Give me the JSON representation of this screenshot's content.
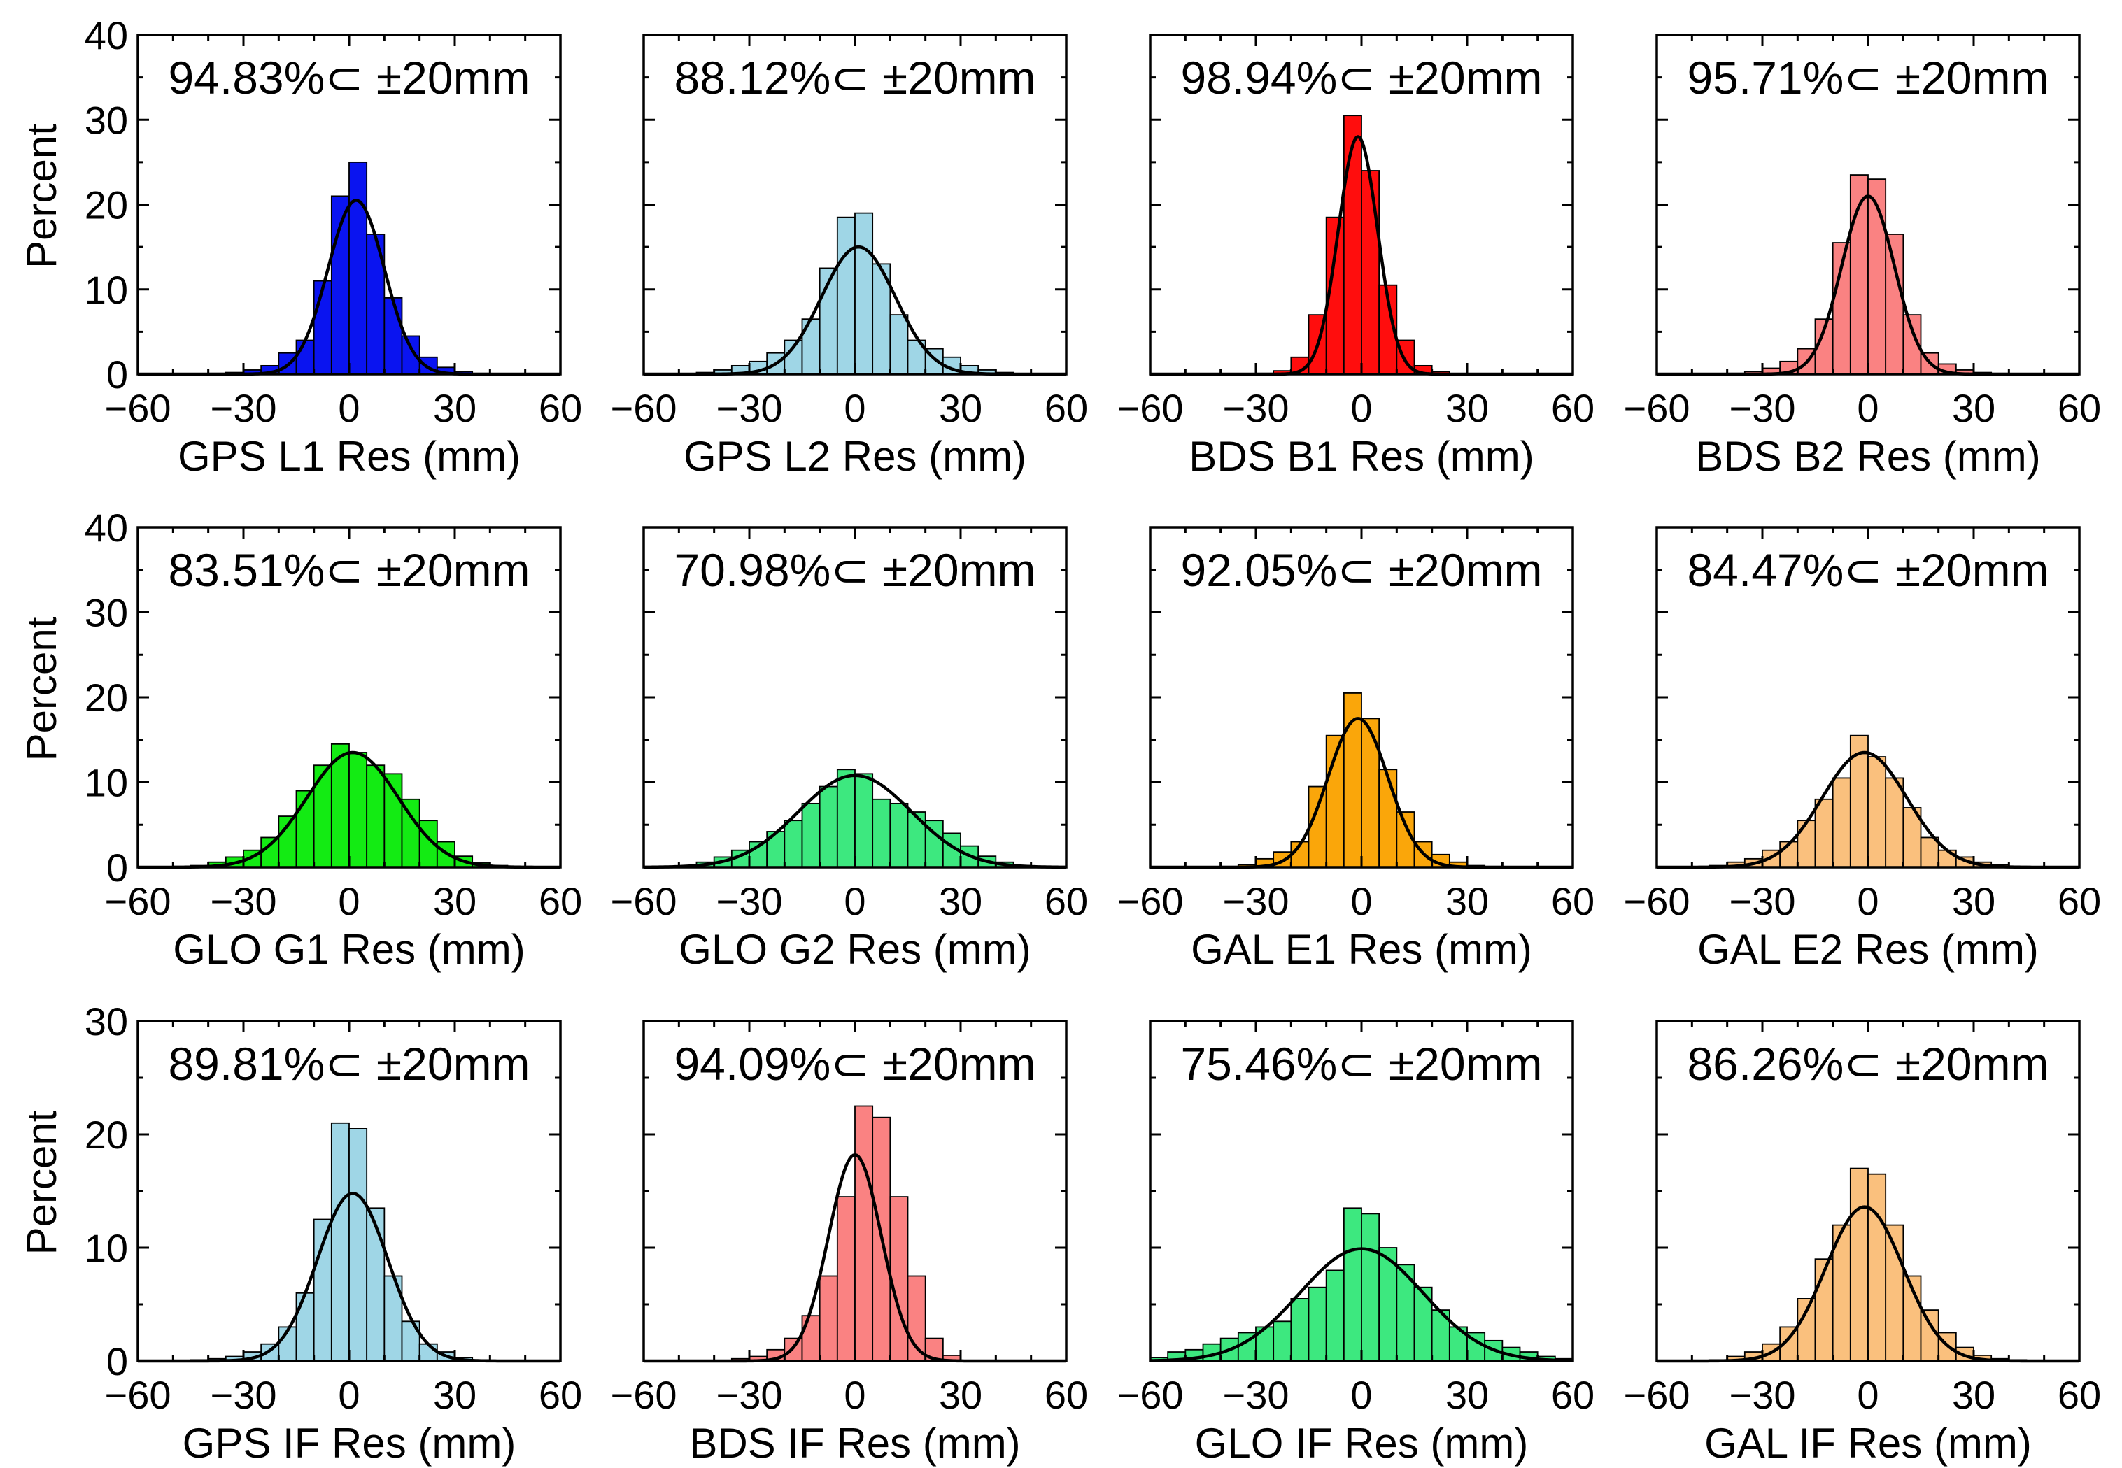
{
  "shared": {
    "ylabel": "Percent",
    "xticks": [
      -60,
      -30,
      0,
      30,
      60
    ],
    "xlim": [
      -60,
      60
    ],
    "bin_width": 5
  },
  "chart_data": [
    {
      "type": "bar",
      "id": "gps-l1",
      "xlabel": "GPS L1 Res (mm)",
      "annotation": "94.83%⊂ ±20mm",
      "color": "#0a14f0",
      "ylim": [
        0,
        40
      ],
      "yticks": [
        0,
        10,
        20,
        30,
        40
      ],
      "show_ylabels": true,
      "bin_centers": [
        -37.5,
        -32.5,
        -27.5,
        -22.5,
        -17.5,
        -12.5,
        -7.5,
        -2.5,
        2.5,
        7.5,
        12.5,
        17.5,
        22.5,
        27.5,
        32.5,
        37.5
      ],
      "values": [
        0.1,
        0.2,
        0.5,
        1.0,
        2.5,
        4.0,
        11.0,
        21.0,
        25.0,
        16.5,
        9.0,
        4.5,
        2.0,
        0.8,
        0.3,
        0.1
      ],
      "fit": {
        "mean": 2,
        "sd": 8.0,
        "peak": 20.5
      }
    },
    {
      "type": "bar",
      "id": "gps-l2",
      "xlabel": "GPS L2 Res (mm)",
      "annotation": "88.12%⊂ ±20mm",
      "color": "#9fd6e6",
      "ylim": [
        0,
        40
      ],
      "yticks": [
        0,
        10,
        20,
        30,
        40
      ],
      "show_ylabels": false,
      "bin_centers": [
        -42.5,
        -37.5,
        -32.5,
        -27.5,
        -22.5,
        -17.5,
        -12.5,
        -7.5,
        -2.5,
        2.5,
        7.5,
        12.5,
        17.5,
        22.5,
        27.5,
        32.5,
        37.5,
        42.5
      ],
      "values": [
        0.2,
        0.5,
        1.0,
        1.5,
        2.5,
        4.0,
        6.5,
        12.5,
        18.5,
        19.0,
        13.0,
        7.0,
        4.0,
        3.0,
        2.0,
        1.0,
        0.5,
        0.2
      ],
      "fit": {
        "mean": 1,
        "sd": 10.5,
        "peak": 15.0
      }
    },
    {
      "type": "bar",
      "id": "bds-b1",
      "xlabel": "BDS B1 Res (mm)",
      "annotation": "98.94%⊂ ±20mm",
      "color": "#ff0d0d",
      "ylim": [
        0,
        40
      ],
      "yticks": [
        0,
        10,
        20,
        30,
        40
      ],
      "show_ylabels": false,
      "bin_centers": [
        -27.5,
        -22.5,
        -17.5,
        -12.5,
        -7.5,
        -2.5,
        2.5,
        7.5,
        12.5,
        17.5,
        22.5
      ],
      "values": [
        0.1,
        0.4,
        2.0,
        7.0,
        18.5,
        30.5,
        24.0,
        10.5,
        4.0,
        1.0,
        0.3
      ],
      "fit": {
        "mean": -1,
        "sd": 5.6,
        "peak": 28.0
      }
    },
    {
      "type": "bar",
      "id": "bds-b2",
      "xlabel": "BDS B2 Res (mm)",
      "annotation": "95.71%⊂ ±20mm",
      "color": "#fa8282",
      "ylim": [
        0,
        40
      ],
      "yticks": [
        0,
        10,
        20,
        30,
        40
      ],
      "show_ylabels": false,
      "bin_centers": [
        -37.5,
        -32.5,
        -27.5,
        -22.5,
        -17.5,
        -12.5,
        -7.5,
        -2.5,
        2.5,
        7.5,
        12.5,
        17.5,
        22.5,
        27.5,
        32.5,
        37.5
      ],
      "values": [
        0.1,
        0.3,
        0.7,
        1.5,
        3.0,
        6.5,
        15.5,
        23.5,
        23.0,
        16.5,
        7.0,
        2.5,
        1.2,
        0.5,
        0.2,
        0.1
      ],
      "fit": {
        "mean": 0,
        "sd": 7.5,
        "peak": 21.0
      }
    },
    {
      "type": "bar",
      "id": "glo-g1",
      "xlabel": "GLO G1 Res (mm)",
      "annotation": "83.51%⊂ ±20mm",
      "color": "#13eb13",
      "ylim": [
        0,
        40
      ],
      "yticks": [
        0,
        10,
        20,
        30,
        40
      ],
      "show_ylabels": true,
      "bin_centers": [
        -42.5,
        -37.5,
        -32.5,
        -27.5,
        -22.5,
        -17.5,
        -12.5,
        -7.5,
        -2.5,
        2.5,
        7.5,
        12.5,
        17.5,
        22.5,
        27.5,
        32.5,
        37.5,
        42.5
      ],
      "values": [
        0.2,
        0.6,
        1.2,
        2.0,
        3.5,
        6.0,
        9.0,
        12.0,
        14.5,
        13.5,
        12.0,
        11.0,
        8.0,
        5.5,
        3.0,
        1.3,
        0.5,
        0.2
      ],
      "fit": {
        "mean": 1,
        "sd": 13.0,
        "peak": 13.5
      }
    },
    {
      "type": "bar",
      "id": "glo-g2",
      "xlabel": "GLO G2 Res (mm)",
      "annotation": "70.98%⊂ ±20mm",
      "color": "#3de87f",
      "ylim": [
        0,
        40
      ],
      "yticks": [
        0,
        10,
        20,
        30,
        40
      ],
      "show_ylabels": false,
      "bin_centers": [
        -47.5,
        -42.5,
        -37.5,
        -32.5,
        -27.5,
        -22.5,
        -17.5,
        -12.5,
        -7.5,
        -2.5,
        2.5,
        7.5,
        12.5,
        17.5,
        22.5,
        27.5,
        32.5,
        37.5,
        42.5,
        47.5
      ],
      "values": [
        0.1,
        0.6,
        1.2,
        2.0,
        3.0,
        4.2,
        5.5,
        7.5,
        9.5,
        11.5,
        11.0,
        8.0,
        7.5,
        6.5,
        5.5,
        4.0,
        2.5,
        1.3,
        0.6,
        0.2
      ],
      "fit": {
        "mean": 0,
        "sd": 16.0,
        "peak": 10.8
      }
    },
    {
      "type": "bar",
      "id": "gal-e1",
      "xlabel": "GAL E1 Res (mm)",
      "annotation": "92.05%⊂ ±20mm",
      "color": "#faa60a",
      "ylim": [
        0,
        40
      ],
      "yticks": [
        0,
        10,
        20,
        30,
        40
      ],
      "show_ylabels": false,
      "bin_centers": [
        -37.5,
        -32.5,
        -27.5,
        -22.5,
        -17.5,
        -12.5,
        -7.5,
        -2.5,
        2.5,
        7.5,
        12.5,
        17.5,
        22.5,
        27.5,
        32.5,
        37.5
      ],
      "values": [
        0.1,
        0.3,
        1.0,
        1.8,
        3.0,
        9.5,
        15.5,
        20.5,
        17.5,
        11.5,
        6.5,
        3.0,
        1.5,
        0.6,
        0.2,
        0.1
      ],
      "fit": {
        "mean": -1,
        "sd": 8.5,
        "peak": 17.5
      }
    },
    {
      "type": "bar",
      "id": "gal-e2",
      "xlabel": "GAL E2 Res (mm)",
      "annotation": "84.47%⊂ ±20mm",
      "color": "#fac07d",
      "ylim": [
        0,
        40
      ],
      "yticks": [
        0,
        10,
        20,
        30,
        40
      ],
      "show_ylabels": false,
      "bin_centers": [
        -42.5,
        -37.5,
        -32.5,
        -27.5,
        -22.5,
        -17.5,
        -12.5,
        -7.5,
        -2.5,
        2.5,
        7.5,
        12.5,
        17.5,
        22.5,
        27.5,
        32.5,
        37.5,
        42.5
      ],
      "values": [
        0.2,
        0.6,
        1.0,
        2.0,
        3.0,
        5.5,
        8.0,
        10.5,
        15.5,
        13.0,
        10.5,
        7.0,
        3.5,
        2.0,
        1.2,
        0.6,
        0.3,
        0.1
      ],
      "fit": {
        "mean": -1,
        "sd": 12.0,
        "peak": 13.5
      }
    },
    {
      "type": "bar",
      "id": "gps-if",
      "xlabel": "GPS IF Res (mm)",
      "annotation": "89.81%⊂ ±20mm",
      "color": "#9fd6e6",
      "ylim": [
        0,
        30
      ],
      "yticks": [
        0,
        10,
        20,
        30
      ],
      "show_ylabels": true,
      "bin_centers": [
        -42.5,
        -37.5,
        -32.5,
        -27.5,
        -22.5,
        -17.5,
        -12.5,
        -7.5,
        -2.5,
        2.5,
        7.5,
        12.5,
        17.5,
        22.5,
        27.5,
        32.5,
        37.5
      ],
      "values": [
        0.1,
        0.2,
        0.4,
        0.8,
        1.5,
        3.0,
        6.0,
        12.5,
        21.0,
        20.5,
        13.5,
        7.5,
        3.5,
        1.5,
        0.8,
        0.3,
        0.1
      ],
      "fit": {
        "mean": 1,
        "sd": 10.0,
        "peak": 14.8
      }
    },
    {
      "type": "bar",
      "id": "bds-if",
      "xlabel": "BDS IF Res (mm)",
      "annotation": "94.09%⊂ ±20mm",
      "color": "#fa8282",
      "ylim": [
        0,
        30
      ],
      "yticks": [
        0,
        10,
        20,
        30
      ],
      "show_ylabels": false,
      "bin_centers": [
        -32.5,
        -27.5,
        -22.5,
        -17.5,
        -12.5,
        -7.5,
        -2.5,
        2.5,
        7.5,
        12.5,
        17.5,
        22.5,
        27.5
      ],
      "values": [
        0.2,
        0.4,
        1.0,
        2.0,
        4.0,
        7.5,
        14.5,
        22.5,
        21.5,
        14.5,
        7.5,
        2.0,
        0.5
      ],
      "fit": {
        "mean": 0,
        "sd": 7.5,
        "peak": 18.2
      }
    },
    {
      "type": "bar",
      "id": "glo-if",
      "xlabel": "GLO IF Res (mm)",
      "annotation": "75.46%⊂ ±20mm",
      "color": "#3de87f",
      "ylim": [
        0,
        30
      ],
      "yticks": [
        0,
        10,
        20,
        30
      ],
      "show_ylabels": false,
      "bin_centers": [
        -57.5,
        -52.5,
        -47.5,
        -42.5,
        -37.5,
        -32.5,
        -27.5,
        -22.5,
        -17.5,
        -12.5,
        -7.5,
        -2.5,
        2.5,
        7.5,
        12.5,
        17.5,
        22.5,
        27.5,
        32.5,
        37.5,
        42.5,
        47.5,
        52.5,
        57.5
      ],
      "values": [
        0.3,
        0.8,
        1.0,
        1.5,
        2.0,
        2.5,
        3.0,
        3.5,
        5.5,
        6.5,
        8.0,
        13.5,
        13.0,
        10.0,
        8.5,
        6.5,
        4.5,
        3.0,
        2.5,
        1.8,
        1.2,
        0.8,
        0.4,
        0.2
      ],
      "fit": {
        "mean": 0,
        "sd": 17.5,
        "peak": 9.9
      }
    },
    {
      "type": "bar",
      "id": "gal-if",
      "xlabel": "GAL IF Res (mm)",
      "annotation": "86.26%⊂ ±20mm",
      "color": "#fac07d",
      "ylim": [
        0,
        30
      ],
      "yticks": [
        0,
        10,
        20,
        30
      ],
      "show_ylabels": false,
      "bin_centers": [
        -42.5,
        -37.5,
        -32.5,
        -27.5,
        -22.5,
        -17.5,
        -12.5,
        -7.5,
        -2.5,
        2.5,
        7.5,
        12.5,
        17.5,
        22.5,
        27.5,
        32.5,
        37.5,
        42.5
      ],
      "values": [
        0.1,
        0.4,
        0.8,
        1.5,
        3.0,
        5.5,
        9.0,
        12.0,
        17.0,
        16.5,
        12.0,
        7.5,
        4.5,
        2.5,
        1.2,
        0.5,
        0.2,
        0.1
      ],
      "fit": {
        "mean": -1,
        "sd": 11.0,
        "peak": 13.6
      }
    }
  ]
}
